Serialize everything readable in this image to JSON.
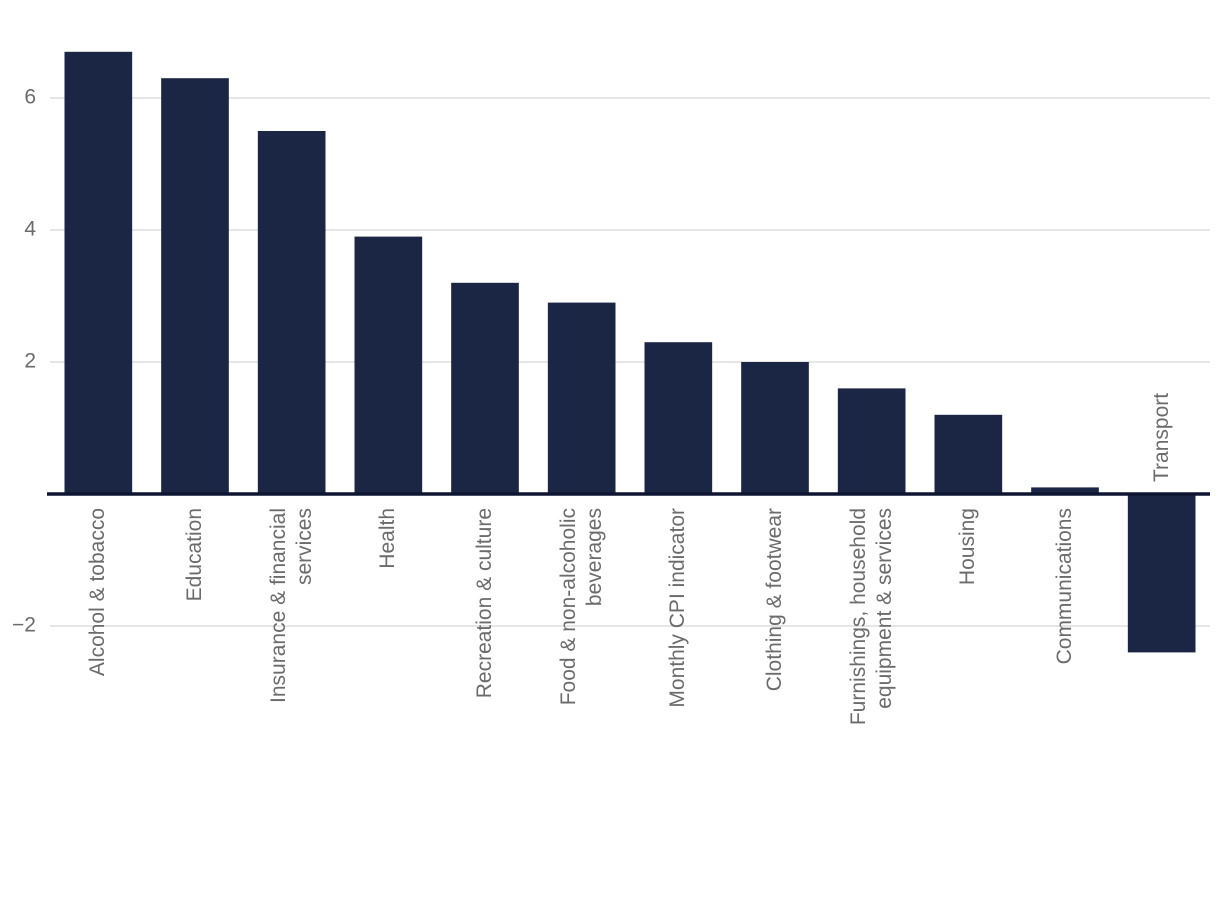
{
  "chart_data": {
    "type": "bar",
    "categories": [
      "Alcohol & tobacco",
      "Education",
      "Insurance & financial services",
      "Health",
      "Recreation & culture",
      "Food & non-alcoholic beverages",
      "Monthly CPI indicator",
      "Clothing & footwear",
      "Furnishings, household equipment & services",
      "Housing",
      "Communications",
      "Transport"
    ],
    "values": [
      6.7,
      6.3,
      5.5,
      3.9,
      3.2,
      2.9,
      2.3,
      2.0,
      1.6,
      1.2,
      0.1,
      -2.4
    ],
    "color": "#1b2644",
    "ylim": [
      -3,
      7
    ],
    "yticks": [
      {
        "value": -2,
        "label": "−2"
      },
      2,
      4,
      6
    ],
    "grid": true
  }
}
